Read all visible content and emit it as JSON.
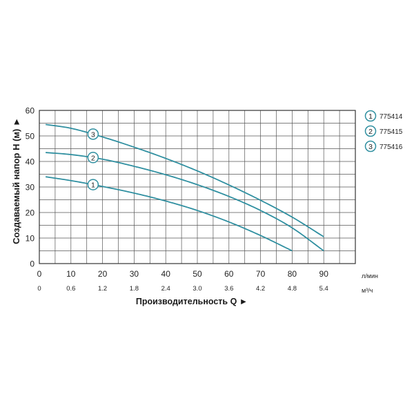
{
  "chart_data": {
    "type": "line",
    "title": "",
    "ylabel": "Создаваемый напор H (м) ►",
    "xlabel": "Производительность Q ►",
    "ylim": [
      0,
      60
    ],
    "xlim": [
      0,
      100
    ],
    "grid": true,
    "legend_position": "right-top",
    "y_ticks": [
      "0",
      "10",
      "20",
      "30",
      "40",
      "50",
      "60"
    ],
    "x_ticks_primary": [
      "0",
      "10",
      "20",
      "30",
      "40",
      "50",
      "60",
      "70",
      "80",
      "90"
    ],
    "x_unit_primary": "л/мин",
    "x_ticks_secondary": [
      "0",
      "0.6",
      "1.2",
      "1.8",
      "2.4",
      "3.0",
      "3.6",
      "4.2",
      "4.8",
      "5.4"
    ],
    "x_unit_secondary": "м³/ч",
    "series_color": "#2f8fa0",
    "series": [
      {
        "name": "775414",
        "marker_label": "1",
        "marker_x": 17,
        "x": [
          2,
          10,
          20,
          30,
          40,
          50,
          60,
          70,
          80
        ],
        "values": [
          34,
          32.5,
          30.2,
          27.6,
          24.5,
          20.8,
          16.3,
          11,
          5
        ]
      },
      {
        "name": "775415",
        "marker_label": "2",
        "marker_x": 17,
        "x": [
          2,
          10,
          20,
          30,
          40,
          50,
          60,
          70,
          80,
          90
        ],
        "values": [
          43.5,
          42.7,
          40.9,
          38.1,
          34.8,
          30.9,
          26.3,
          20.8,
          14,
          5
        ]
      },
      {
        "name": "775416",
        "marker_label": "3",
        "marker_x": 17,
        "x": [
          2,
          10,
          20,
          30,
          40,
          50,
          60,
          70,
          80,
          90
        ],
        "values": [
          54.5,
          53,
          49.6,
          45.6,
          41.2,
          36.3,
          30.8,
          24.8,
          18.2,
          10.5
        ]
      }
    ]
  }
}
